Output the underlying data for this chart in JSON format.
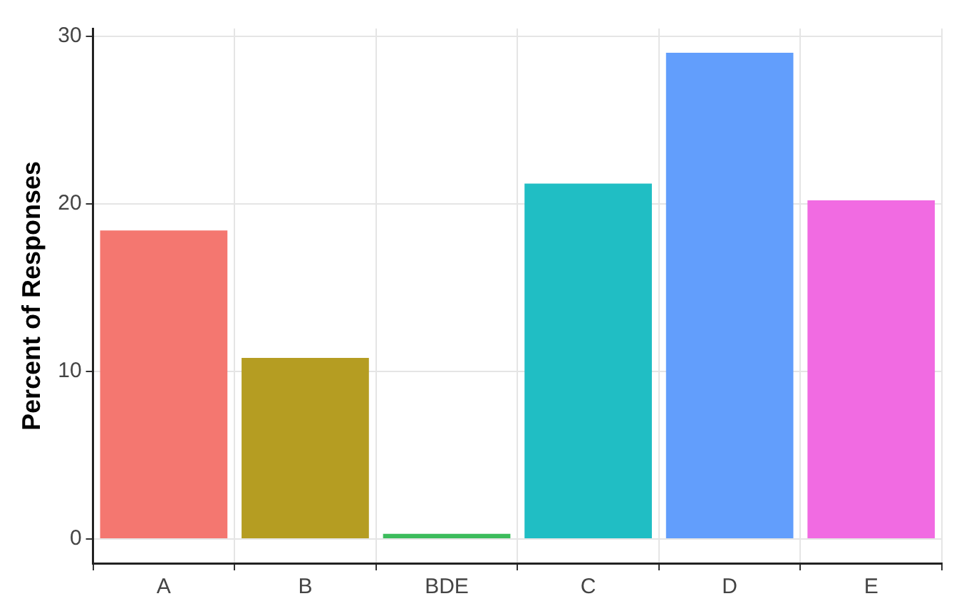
{
  "chart_data": {
    "type": "bar",
    "ylabel": "Percent of Responses",
    "categories": [
      "A",
      "B",
      "BDE",
      "C",
      "D",
      "E"
    ],
    "values": [
      18.4,
      10.8,
      0.3,
      21.2,
      29.0,
      20.2
    ],
    "colors": [
      "#f47770",
      "#b59d22",
      "#3cbc5c",
      "#20bec4",
      "#629efc",
      "#f16be2"
    ],
    "ylim": [
      -1.45,
      30.45
    ],
    "yticks": [
      0,
      10,
      20,
      30
    ],
    "grid": true
  }
}
